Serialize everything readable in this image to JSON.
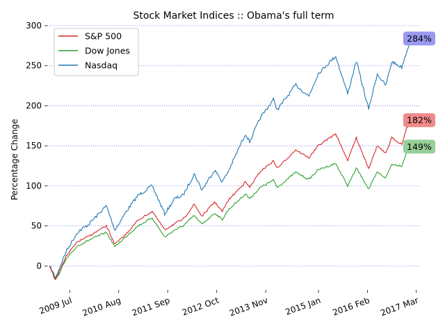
{
  "chart_data": {
    "type": "line",
    "title": "Stock Market Indices :: Obama's full term",
    "xlabel": "",
    "ylabel": "Percentage Change",
    "ylim": [
      -30,
      300
    ],
    "yticks": [
      0,
      50,
      100,
      150,
      200,
      250,
      300
    ],
    "xlim": [
      "2009-01-01",
      "2017-03-31"
    ],
    "xticks": [
      {
        "date": "2009-07-01",
        "label": "2009 Jul"
      },
      {
        "date": "2010-08-01",
        "label": "2010 Aug"
      },
      {
        "date": "2011-09-01",
        "label": "2011 Sep"
      },
      {
        "date": "2012-10-01",
        "label": "2012 Oct"
      },
      {
        "date": "2013-11-01",
        "label": "2013 Nov"
      },
      {
        "date": "2015-01-01",
        "label": "2015 Jan"
      },
      {
        "date": "2016-02-01",
        "label": "2016 Feb"
      },
      {
        "date": "2017-03-01",
        "label": "2017 Mar"
      }
    ],
    "grid": {
      "y": true,
      "style": "dotted",
      "color": "#6f6fe8"
    },
    "legend": "top-left",
    "x": [
      "2009-01-20",
      "2009-03-09",
      "2009-06-01",
      "2009-09-01",
      "2009-12-01",
      "2010-04-23",
      "2010-07-02",
      "2010-10-01",
      "2011-01-03",
      "2011-04-29",
      "2011-08-08",
      "2011-10-27",
      "2012-01-03",
      "2012-04-02",
      "2012-06-04",
      "2012-09-14",
      "2012-11-15",
      "2013-01-02",
      "2013-05-21",
      "2013-06-24",
      "2013-09-18",
      "2014-01-02",
      "2014-02-03",
      "2014-07-01",
      "2014-10-15",
      "2014-12-29",
      "2015-05-20",
      "2015-08-25",
      "2015-11-03",
      "2016-01-20",
      "2016-02-11",
      "2016-04-20",
      "2016-06-27",
      "2016-08-15",
      "2016-11-04",
      "2016-12-13",
      "2017-01-19"
    ],
    "series": [
      {
        "name": "S&P 500",
        "color": "#d62728",
        "values": [
          0,
          -17,
          12,
          30,
          37,
          50,
          27,
          40,
          57,
          68,
          45,
          53,
          58,
          77,
          62,
          80,
          68,
          82,
          105,
          98,
          118,
          131,
          122,
          145,
          135,
          150,
          165,
          132,
          160,
          130,
          122,
          150,
          140,
          160,
          152,
          172,
          182
        ]
      },
      {
        "name": "Dow Jones",
        "color": "#2ca02c",
        "values": [
          0,
          -18,
          8,
          25,
          32,
          42,
          24,
          37,
          50,
          60,
          36,
          45,
          50,
          63,
          52,
          66,
          58,
          70,
          90,
          84,
          98,
          107,
          98,
          117,
          108,
          120,
          128,
          100,
          122,
          102,
          96,
          117,
          110,
          127,
          125,
          142,
          149
        ]
      },
      {
        "name": "Nasdaq",
        "color": "#1f77b4",
        "values": [
          0,
          -15,
          18,
          42,
          52,
          75,
          45,
          68,
          88,
          100,
          65,
          84,
          88,
          115,
          95,
          120,
          105,
          118,
          165,
          155,
          185,
          208,
          195,
          226,
          212,
          240,
          262,
          215,
          256,
          208,
          196,
          240,
          225,
          255,
          248,
          268,
          284
        ]
      }
    ],
    "end_labels": [
      {
        "series": "Nasdaq",
        "text": "284%",
        "bg": "#9999f0"
      },
      {
        "series": "S&P 500",
        "text": "182%",
        "bg": "#f08a8a"
      },
      {
        "series": "Dow Jones",
        "text": "149%",
        "bg": "#97cf97"
      }
    ]
  }
}
